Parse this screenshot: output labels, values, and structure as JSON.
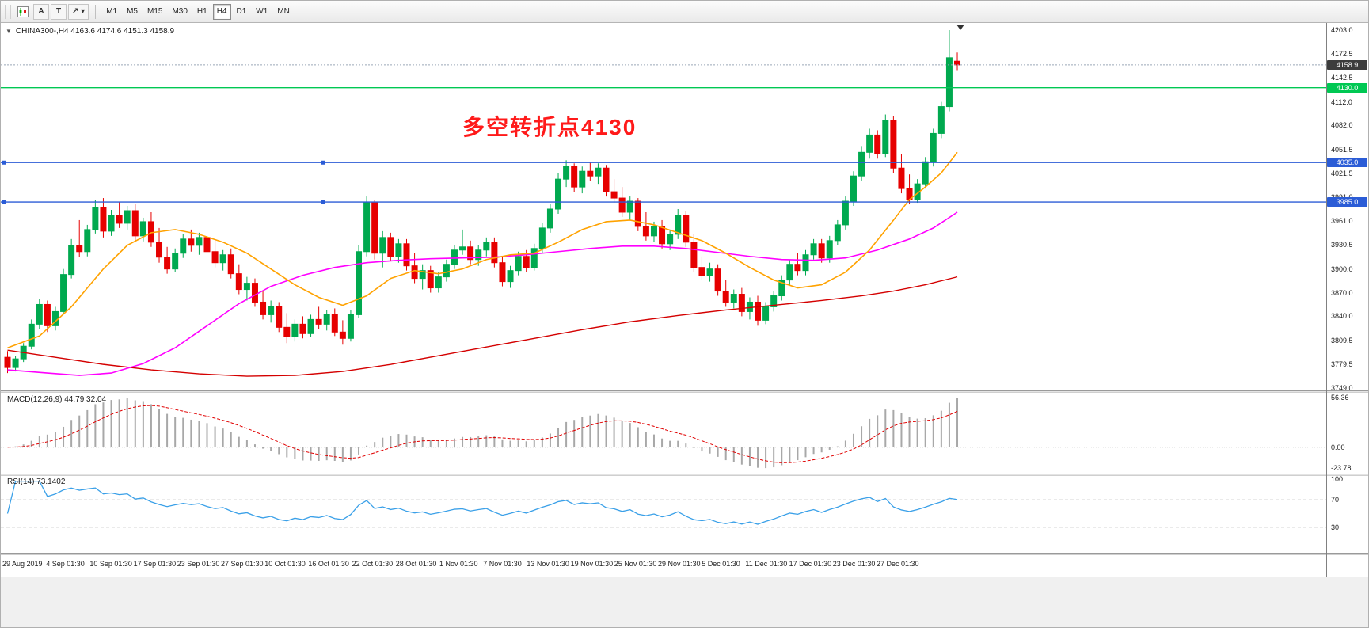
{
  "toolbar": {
    "tools": [
      {
        "id": "cursor-tool",
        "label": "A"
      },
      {
        "id": "text-label-tool",
        "label": "T"
      },
      {
        "id": "arrow-objects-tool",
        "label": "↗",
        "dropdown": "▾"
      }
    ],
    "timeframes": [
      "M1",
      "M5",
      "M15",
      "M30",
      "H1",
      "H4",
      "D1",
      "W1",
      "MN"
    ],
    "active_timeframe": "H4"
  },
  "chart": {
    "symbol_line": "CHINA300-,H4  4163.6 4174.6 4151.3 4158.9",
    "annotation": {
      "text": "多空转折点4130",
      "color": "#ff1a1a"
    },
    "current_price": {
      "label": "4158.9",
      "value": 4158.9,
      "bg": "#3c3c3c"
    },
    "price_axis": [
      4203.0,
      4172.5,
      4142.5,
      4112.0,
      4082.0,
      4051.5,
      4021.5,
      3991.0,
      3961.0,
      3930.5,
      3900.0,
      3870.0,
      3840.0,
      3809.5,
      3779.5,
      3749.0
    ],
    "hlines": [
      {
        "value": 4130.0,
        "label": "4130.0",
        "color": "#00c853"
      },
      {
        "value": 4035.0,
        "label": "4035.0",
        "color": "#2b5cd6"
      },
      {
        "value": 3985.0,
        "label": "3985.0",
        "color": "#2b5cd6"
      }
    ]
  },
  "macd": {
    "label": "MACD(12,26,9) 44.79 32.04",
    "axis": [
      "56.36",
      "0.00",
      "-23.78"
    ],
    "axis_values": [
      56.36,
      0,
      -23.78
    ]
  },
  "rsi": {
    "label": "RSI(14) 73.1402",
    "axis": [
      "100",
      "70",
      "30"
    ],
    "axis_values": [
      100,
      70,
      30
    ],
    "levels": [
      70,
      30
    ]
  },
  "time_axis": [
    "29 Aug 2019",
    "4 Sep 01:30",
    "10 Sep 01:30",
    "17 Sep 01:30",
    "23 Sep 01:30",
    "27 Sep 01:30",
    "10 Oct 01:30",
    "16 Oct 01:30",
    "22 Oct 01:30",
    "28 Oct 01:30",
    "1 Nov 01:30",
    "7 Nov 01:30",
    "13 Nov 01:30",
    "19 Nov 01:30",
    "25 Nov 01:30",
    "29 Nov 01:30",
    "5 Dec 01:30",
    "11 Dec 01:30",
    "17 Dec 01:30",
    "23 Dec 01:30",
    "27 Dec 01:30"
  ],
  "chart_data": {
    "type": "candlestick",
    "symbol": "CHINA300-",
    "timeframe": "H4",
    "ylim": [
      3749.0,
      4203.0
    ],
    "ohlc_last": {
      "open": 4163.6,
      "high": 4174.6,
      "low": 4151.3,
      "close": 4158.9
    },
    "candles": [
      [
        3788,
        3796,
        3768,
        3775
      ],
      [
        3775,
        3790,
        3770,
        3786
      ],
      [
        3786,
        3806,
        3782,
        3802
      ],
      [
        3802,
        3836,
        3798,
        3830
      ],
      [
        3830,
        3862,
        3824,
        3855
      ],
      [
        3855,
        3860,
        3820,
        3828
      ],
      [
        3828,
        3852,
        3822,
        3846
      ],
      [
        3846,
        3900,
        3842,
        3893
      ],
      [
        3893,
        3938,
        3888,
        3930
      ],
      [
        3930,
        3962,
        3915,
        3922
      ],
      [
        3922,
        3956,
        3916,
        3950
      ],
      [
        3950,
        3988,
        3945,
        3978
      ],
      [
        3978,
        3990,
        3940,
        3948
      ],
      [
        3948,
        3975,
        3942,
        3968
      ],
      [
        3968,
        3985,
        3952,
        3958
      ],
      [
        3958,
        3980,
        3950,
        3974
      ],
      [
        3974,
        3982,
        3936,
        3942
      ],
      [
        3942,
        3965,
        3935,
        3960
      ],
      [
        3960,
        3972,
        3928,
        3934
      ],
      [
        3934,
        3952,
        3908,
        3915
      ],
      [
        3915,
        3928,
        3894,
        3900
      ],
      [
        3900,
        3926,
        3896,
        3920
      ],
      [
        3920,
        3944,
        3914,
        3938
      ],
      [
        3938,
        3950,
        3922,
        3930
      ],
      [
        3930,
        3946,
        3918,
        3940
      ],
      [
        3940,
        3948,
        3916,
        3922
      ],
      [
        3922,
        3936,
        3902,
        3908
      ],
      [
        3908,
        3924,
        3898,
        3918
      ],
      [
        3918,
        3926,
        3888,
        3894
      ],
      [
        3894,
        3906,
        3868,
        3874
      ],
      [
        3874,
        3890,
        3860,
        3882
      ],
      [
        3882,
        3888,
        3852,
        3858
      ],
      [
        3858,
        3872,
        3836,
        3842
      ],
      [
        3842,
        3860,
        3832,
        3852
      ],
      [
        3852,
        3858,
        3820,
        3826
      ],
      [
        3826,
        3844,
        3806,
        3814
      ],
      [
        3814,
        3836,
        3808,
        3830
      ],
      [
        3830,
        3840,
        3812,
        3818
      ],
      [
        3818,
        3842,
        3814,
        3836
      ],
      [
        3836,
        3852,
        3824,
        3830
      ],
      [
        3830,
        3848,
        3822,
        3842
      ],
      [
        3842,
        3850,
        3815,
        3820
      ],
      [
        3820,
        3835,
        3804,
        3812
      ],
      [
        3812,
        3848,
        3808,
        3842
      ],
      [
        3842,
        3930,
        3838,
        3922
      ],
      [
        3922,
        3992,
        3916,
        3984
      ],
      [
        3984,
        3988,
        3912,
        3920
      ],
      [
        3920,
        3948,
        3902,
        3940
      ],
      [
        3940,
        3946,
        3910,
        3916
      ],
      [
        3916,
        3938,
        3908,
        3932
      ],
      [
        3932,
        3938,
        3898,
        3904
      ],
      [
        3904,
        3920,
        3882,
        3888
      ],
      [
        3888,
        3906,
        3874,
        3898
      ],
      [
        3898,
        3904,
        3870,
        3876
      ],
      [
        3876,
        3896,
        3870,
        3890
      ],
      [
        3890,
        3912,
        3884,
        3906
      ],
      [
        3906,
        3930,
        3900,
        3924
      ],
      [
        3924,
        3950,
        3918,
        3928
      ],
      [
        3928,
        3936,
        3906,
        3912
      ],
      [
        3912,
        3930,
        3904,
        3924
      ],
      [
        3924,
        3940,
        3916,
        3934
      ],
      [
        3934,
        3940,
        3902,
        3908
      ],
      [
        3908,
        3916,
        3878,
        3884
      ],
      [
        3884,
        3904,
        3876,
        3898
      ],
      [
        3898,
        3922,
        3892,
        3916
      ],
      [
        3916,
        3924,
        3896,
        3902
      ],
      [
        3902,
        3932,
        3898,
        3926
      ],
      [
        3926,
        3958,
        3920,
        3952
      ],
      [
        3952,
        3982,
        3946,
        3976
      ],
      [
        3976,
        4022,
        3970,
        4014
      ],
      [
        4014,
        4038,
        4004,
        4030
      ],
      [
        4030,
        4034,
        3998,
        4004
      ],
      [
        4004,
        4030,
        3996,
        4024
      ],
      [
        4024,
        4036,
        4012,
        4018
      ],
      [
        4018,
        4034,
        4008,
        4028
      ],
      [
        4028,
        4032,
        3992,
        3998
      ],
      [
        3998,
        4014,
        3984,
        3990
      ],
      [
        3990,
        4004,
        3966,
        3972
      ],
      [
        3972,
        3992,
        3962,
        3986
      ],
      [
        3986,
        3990,
        3948,
        3954
      ],
      [
        3954,
        3972,
        3936,
        3942
      ],
      [
        3942,
        3960,
        3934,
        3954
      ],
      [
        3954,
        3962,
        3926,
        3932
      ],
      [
        3932,
        3950,
        3924,
        3944
      ],
      [
        3944,
        3976,
        3938,
        3968
      ],
      [
        3968,
        3974,
        3928,
        3934
      ],
      [
        3934,
        3944,
        3896,
        3902
      ],
      [
        3902,
        3916,
        3886,
        3892
      ],
      [
        3892,
        3908,
        3884,
        3900
      ],
      [
        3900,
        3906,
        3866,
        3872
      ],
      [
        3872,
        3886,
        3852,
        3858
      ],
      [
        3858,
        3874,
        3850,
        3868
      ],
      [
        3868,
        3876,
        3840,
        3846
      ],
      [
        3846,
        3864,
        3836,
        3858
      ],
      [
        3858,
        3866,
        3828,
        3835
      ],
      [
        3835,
        3858,
        3830,
        3852
      ],
      [
        3852,
        3872,
        3846,
        3866
      ],
      [
        3866,
        3892,
        3860,
        3886
      ],
      [
        3886,
        3912,
        3880,
        3906
      ],
      [
        3906,
        3920,
        3892,
        3898
      ],
      [
        3898,
        3924,
        3892,
        3918
      ],
      [
        3918,
        3938,
        3912,
        3932
      ],
      [
        3932,
        3938,
        3908,
        3914
      ],
      [
        3914,
        3942,
        3908,
        3936
      ],
      [
        3936,
        3962,
        3930,
        3956
      ],
      [
        3956,
        3992,
        3950,
        3986
      ],
      [
        3986,
        4024,
        3980,
        4018
      ],
      [
        4018,
        4056,
        4012,
        4048
      ],
      [
        4048,
        4078,
        4040,
        4070
      ],
      [
        4070,
        4076,
        4040,
        4046
      ],
      [
        4046,
        4096,
        4042,
        4088
      ],
      [
        4088,
        4094,
        4022,
        4028
      ],
      [
        4028,
        4046,
        3996,
        4002
      ],
      [
        4002,
        4020,
        3982,
        3988
      ],
      [
        3988,
        4014,
        3984,
        4008
      ],
      [
        4008,
        4042,
        4002,
        4036
      ],
      [
        4036,
        4078,
        4030,
        4072
      ],
      [
        4072,
        4112,
        4066,
        4106
      ],
      [
        4106,
        4203,
        4100,
        4168
      ],
      [
        4163.6,
        4174.6,
        4151.3,
        4158.9
      ]
    ],
    "overlays": {
      "ma_fast_orange": [
        [
          0,
          3800
        ],
        [
          4,
          3815
        ],
        [
          8,
          3852
        ],
        [
          12,
          3900
        ],
        [
          15,
          3930
        ],
        [
          18,
          3946
        ],
        [
          21,
          3950
        ],
        [
          24,
          3944
        ],
        [
          27,
          3934
        ],
        [
          30,
          3920
        ],
        [
          33,
          3900
        ],
        [
          36,
          3880
        ],
        [
          39,
          3864
        ],
        [
          42,
          3854
        ],
        [
          45,
          3866
        ],
        [
          48,
          3888
        ],
        [
          51,
          3898
        ],
        [
          54,
          3894
        ],
        [
          57,
          3900
        ],
        [
          60,
          3912
        ],
        [
          63,
          3918
        ],
        [
          66,
          3920
        ],
        [
          69,
          3934
        ],
        [
          72,
          3950
        ],
        [
          75,
          3960
        ],
        [
          78,
          3962
        ],
        [
          81,
          3956
        ],
        [
          84,
          3946
        ],
        [
          87,
          3936
        ],
        [
          90,
          3920
        ],
        [
          93,
          3902
        ],
        [
          96,
          3886
        ],
        [
          99,
          3876
        ],
        [
          102,
          3880
        ],
        [
          105,
          3896
        ],
        [
          108,
          3924
        ],
        [
          111,
          3962
        ],
        [
          113,
          3988
        ],
        [
          115,
          4004
        ],
        [
          117,
          4022
        ],
        [
          119,
          4048
        ]
      ],
      "ma_mid_magenta": [
        [
          0,
          3772
        ],
        [
          5,
          3768
        ],
        [
          9,
          3765
        ],
        [
          13,
          3768
        ],
        [
          17,
          3780
        ],
        [
          21,
          3800
        ],
        [
          25,
          3828
        ],
        [
          29,
          3856
        ],
        [
          33,
          3878
        ],
        [
          37,
          3892
        ],
        [
          41,
          3902
        ],
        [
          45,
          3908
        ],
        [
          49,
          3911
        ],
        [
          53,
          3913
        ],
        [
          57,
          3914
        ],
        [
          61,
          3915
        ],
        [
          65,
          3918
        ],
        [
          69,
          3922
        ],
        [
          73,
          3926
        ],
        [
          77,
          3929
        ],
        [
          81,
          3929
        ],
        [
          85,
          3926
        ],
        [
          89,
          3921
        ],
        [
          93,
          3916
        ],
        [
          97,
          3912
        ],
        [
          101,
          3911
        ],
        [
          105,
          3914
        ],
        [
          109,
          3924
        ],
        [
          113,
          3938
        ],
        [
          116,
          3952
        ],
        [
          119,
          3972
        ]
      ],
      "ma_slow_red": [
        [
          0,
          3797
        ],
        [
          6,
          3788
        ],
        [
          12,
          3779
        ],
        [
          18,
          3772
        ],
        [
          24,
          3767
        ],
        [
          30,
          3764
        ],
        [
          36,
          3765
        ],
        [
          42,
          3770
        ],
        [
          48,
          3779
        ],
        [
          54,
          3790
        ],
        [
          60,
          3801
        ],
        [
          66,
          3812
        ],
        [
          72,
          3823
        ],
        [
          78,
          3833
        ],
        [
          84,
          3841
        ],
        [
          90,
          3848
        ],
        [
          96,
          3854
        ],
        [
          102,
          3860
        ],
        [
          107,
          3866
        ],
        [
          111,
          3872
        ],
        [
          115,
          3880
        ],
        [
          119,
          3890
        ]
      ]
    },
    "indicators": {
      "macd": {
        "params": [
          12,
          26,
          9
        ],
        "last_main": 44.79,
        "last_signal": 32.04,
        "scale_labels": [
          56.36,
          0.0,
          -23.78
        ]
      },
      "rsi": {
        "period": 14,
        "last": 73.1402,
        "levels": [
          30,
          70
        ]
      }
    }
  }
}
